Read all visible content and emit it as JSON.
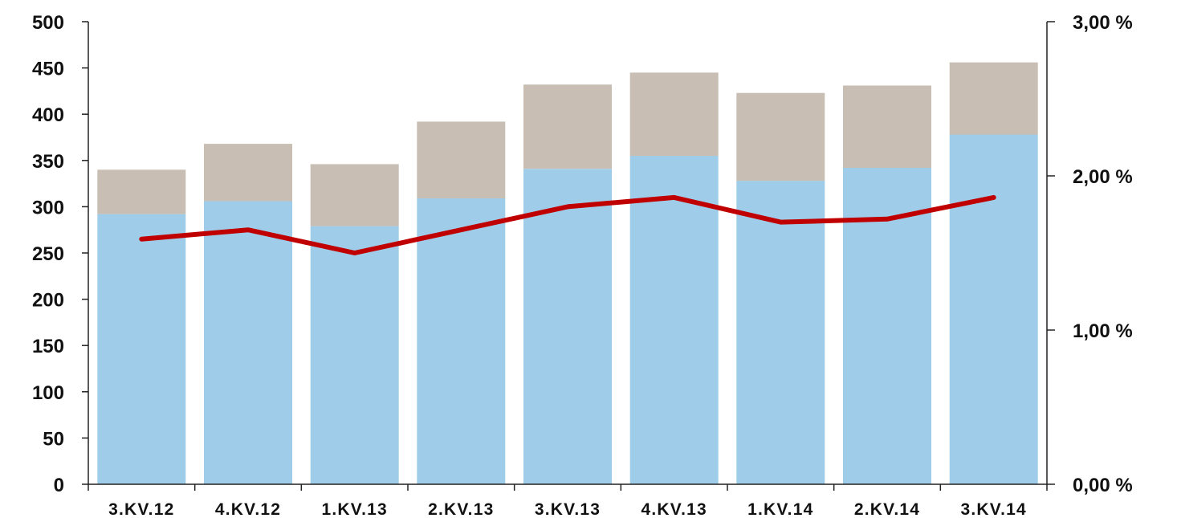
{
  "chart_data": {
    "type": "bar",
    "stacked": true,
    "categories": [
      "3.KV.12",
      "4.KV.12",
      "1.KV.13",
      "2.KV.13",
      "3.KV.13",
      "4.KV.13",
      "1.KV.14",
      "2.KV.14",
      "3.KV.14"
    ],
    "series": [
      {
        "type": "bar",
        "axis": "left",
        "color": "#9fcde9",
        "values": [
          292,
          306,
          279,
          309,
          341,
          355,
          328,
          342,
          378
        ]
      },
      {
        "type": "bar",
        "axis": "left",
        "color": "#c9beb3",
        "values": [
          48,
          62,
          67,
          83,
          91,
          90,
          95,
          89,
          78
        ]
      },
      {
        "type": "line",
        "axis": "right",
        "color": "#c00000",
        "values": [
          1.59,
          1.65,
          1.5,
          1.65,
          1.8,
          1.86,
          1.7,
          1.72,
          1.86
        ]
      }
    ],
    "y_left": {
      "range": [
        0,
        500
      ],
      "ticks": [
        0,
        50,
        100,
        150,
        200,
        250,
        300,
        350,
        400,
        450,
        500
      ],
      "tick_labels": [
        "0",
        "50",
        "100",
        "150",
        "200",
        "250",
        "300",
        "350",
        "400",
        "450",
        "500"
      ]
    },
    "y_right": {
      "range": [
        0,
        3
      ],
      "ticks": [
        0,
        1,
        2,
        3
      ],
      "tick_labels": [
        "0,00 %",
        "1,00 %",
        "2,00 %",
        "3,00 %"
      ]
    },
    "grid": false,
    "legend": "none"
  }
}
